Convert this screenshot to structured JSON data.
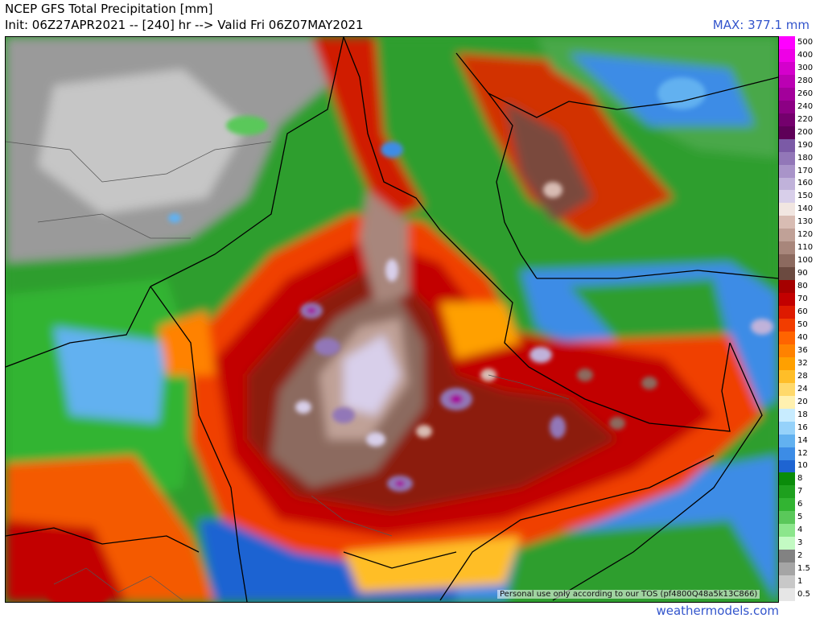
{
  "header": {
    "title": "NCEP GFS Total Precipitation [mm]",
    "init_line": "Init: 06Z27APR2021 -- [240] hr --> Valid Fri 06Z07MAY2021",
    "max_label": "MAX: 377.1 mm"
  },
  "legend": {
    "levels": [
      {
        "label": "500",
        "color": "#ff00ff"
      },
      {
        "label": "400",
        "color": "#ee00e6"
      },
      {
        "label": "300",
        "color": "#d400cc"
      },
      {
        "label": "280",
        "color": "#bb00b3"
      },
      {
        "label": "260",
        "color": "#a3009b"
      },
      {
        "label": "240",
        "color": "#8c0084"
      },
      {
        "label": "220",
        "color": "#74006d"
      },
      {
        "label": "200",
        "color": "#5e0058"
      },
      {
        "label": "190",
        "color": "#7b5aa6"
      },
      {
        "label": "180",
        "color": "#9277b8"
      },
      {
        "label": "170",
        "color": "#a994c9"
      },
      {
        "label": "160",
        "color": "#c0b2da"
      },
      {
        "label": "150",
        "color": "#d8cfea"
      },
      {
        "label": "140",
        "color": "#f1e6e1"
      },
      {
        "label": "130",
        "color": "#d8bcb3"
      },
      {
        "label": "120",
        "color": "#c0a197"
      },
      {
        "label": "110",
        "color": "#a8867b"
      },
      {
        "label": "100",
        "color": "#8c6a5f"
      },
      {
        "label": "90",
        "color": "#6b4a40"
      },
      {
        "label": "80",
        "color": "#a50000"
      },
      {
        "label": "70",
        "color": "#c20000"
      },
      {
        "label": "60",
        "color": "#de1a00"
      },
      {
        "label": "50",
        "color": "#f23d00"
      },
      {
        "label": "40",
        "color": "#ff6400"
      },
      {
        "label": "36",
        "color": "#ff8200"
      },
      {
        "label": "32",
        "color": "#ffa000"
      },
      {
        "label": "28",
        "color": "#ffbe28"
      },
      {
        "label": "24",
        "color": "#ffd96b"
      },
      {
        "label": "20",
        "color": "#fff1b0"
      },
      {
        "label": "18",
        "color": "#c8ecff"
      },
      {
        "label": "16",
        "color": "#96d2fa"
      },
      {
        "label": "14",
        "color": "#62b1f0"
      },
      {
        "label": "12",
        "color": "#3c8ce6"
      },
      {
        "label": "10",
        "color": "#1e64d2"
      },
      {
        "label": "8",
        "color": "#0a8c0a"
      },
      {
        "label": "7",
        "color": "#1ea01e"
      },
      {
        "label": "6",
        "color": "#32b432"
      },
      {
        "label": "5",
        "color": "#5ac85a"
      },
      {
        "label": "4",
        "color": "#8ce68c"
      },
      {
        "label": "3",
        "color": "#c3fac3"
      },
      {
        "label": "2",
        "color": "#828282"
      },
      {
        "label": "1.5",
        "color": "#a5a5a5"
      },
      {
        "label": "1",
        "color": "#c8c8c8"
      },
      {
        "label": "0.5",
        "color": "#e6e6e6"
      }
    ]
  },
  "footer": {
    "tos_notice": "Personal use only according to our TOS (pf4800Q48a5k13C866)",
    "site": "weathermodels.com"
  }
}
